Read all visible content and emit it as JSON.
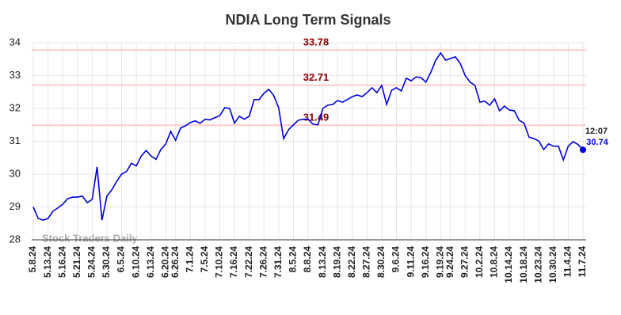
{
  "chart_data": {
    "type": "line",
    "title": "NDIA Long Term Signals",
    "watermark": "Stock Traders Daily",
    "categories": [
      "5.8.24",
      null,
      null,
      "5.13.24",
      null,
      null,
      "5.16.24",
      null,
      null,
      "5.21.24",
      null,
      null,
      "5.24.24",
      null,
      null,
      "5.30.24",
      null,
      null,
      "6.5.24",
      null,
      null,
      "6.10.24",
      null,
      null,
      "6.13.24",
      null,
      null,
      "6.20.24",
      null,
      "6.26.24",
      null,
      null,
      "7.1.24",
      null,
      null,
      "7.5.24",
      null,
      null,
      "7.10.24",
      null,
      null,
      "7.16.24",
      null,
      null,
      "7.22.24",
      null,
      null,
      "7.26.24",
      null,
      null,
      "7.31.24",
      null,
      null,
      "8.5.24",
      null,
      null,
      "8.8.24",
      null,
      null,
      "8.13.24",
      null,
      null,
      "8.19.24",
      null,
      null,
      "8.22.24",
      null,
      null,
      "8.27.24",
      null,
      null,
      "8.30.24",
      null,
      null,
      "9.6.24",
      null,
      null,
      "9.11.24",
      null,
      null,
      "9.16.24",
      null,
      null,
      "9.19.24",
      null,
      "9.24.24",
      null,
      null,
      "9.27.24",
      null,
      null,
      "10.2.24",
      null,
      null,
      "10.8.24",
      null,
      null,
      "10.14.24",
      null,
      null,
      "10.18.24",
      null,
      null,
      "10.23.24",
      null,
      null,
      "10.30.24",
      null,
      null,
      "11.4.24",
      null,
      null,
      "11.7.24"
    ],
    "series": [
      {
        "color": "#0000e0",
        "values": [
          29.0,
          28.65,
          28.6,
          28.65,
          28.87,
          28.97,
          29.08,
          29.25,
          29.3,
          29.3,
          29.33,
          29.13,
          29.23,
          30.22,
          28.6,
          29.33,
          29.52,
          29.78,
          30.0,
          30.08,
          30.33,
          30.25,
          30.55,
          30.72,
          30.55,
          30.45,
          30.75,
          30.92,
          31.3,
          31.03,
          31.4,
          31.47,
          31.57,
          31.62,
          31.55,
          31.67,
          31.65,
          31.72,
          31.78,
          32.02,
          32.0,
          31.55,
          31.76,
          31.67,
          31.76,
          32.27,
          32.27,
          32.46,
          32.58,
          32.39,
          32.02,
          31.08,
          31.35,
          31.5,
          31.64,
          31.67,
          31.67,
          31.52,
          31.5,
          32.0,
          32.1,
          32.12,
          32.24,
          32.19,
          32.27,
          32.36,
          32.41,
          32.36,
          32.48,
          32.63,
          32.48,
          32.7,
          32.12,
          32.55,
          32.63,
          32.53,
          32.92,
          32.84,
          32.96,
          32.94,
          32.8,
          33.1,
          33.47,
          33.69,
          33.47,
          33.52,
          33.57,
          33.37,
          33.0,
          32.8,
          32.7,
          32.19,
          32.22,
          32.1,
          32.29,
          31.93,
          32.07,
          31.95,
          31.93,
          31.64,
          31.55,
          31.13,
          31.08,
          31.01,
          30.75,
          30.92,
          30.85,
          30.85,
          30.43,
          30.85,
          30.99,
          30.9,
          30.74
        ]
      }
    ],
    "last_time": "12:07",
    "levels": [
      {
        "value": 33.78,
        "color": "#ffcccc",
        "label_color": "#8b0000"
      },
      {
        "value": 32.71,
        "color": "#ffcccc",
        "label_color": "#8b0000"
      },
      {
        "value": 31.49,
        "color": "#ffcccc",
        "label_color": "#8b0000"
      }
    ],
    "ylim": [
      28,
      34
    ],
    "yticks": [
      28,
      29,
      30,
      31,
      32,
      33,
      34
    ],
    "grid": true
  }
}
